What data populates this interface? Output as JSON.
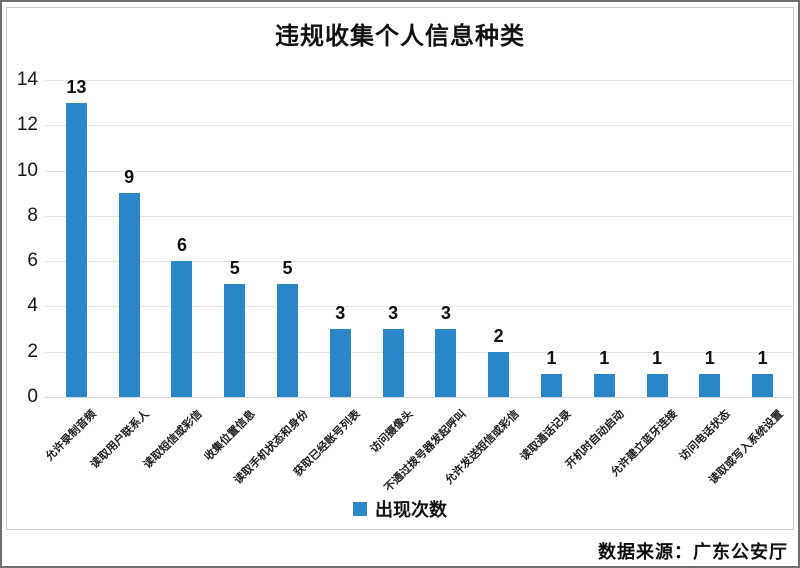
{
  "title": "违规收集个人信息种类",
  "legend": {
    "label": "出现次数",
    "marker_color": "#2a86c7"
  },
  "source": "数据来源：广东公安厅",
  "colors": {
    "bar": "#2a86c7",
    "grid": "#e4e4e4",
    "baseline": "#d6d6d6",
    "frame": "#c9c9c9",
    "text": "#111111"
  },
  "chart_data": {
    "type": "bar",
    "title": "违规收集个人信息种类",
    "categories": [
      "允许录制音频",
      "读取用户联系人",
      "读取短信或彩信",
      "收集位置信息",
      "读取手机状态和身份",
      "获取已经账号列表",
      "访问摄像头",
      "不通过拨号器发起呼叫",
      "允许发送短信或彩信",
      "读取通话记录",
      "开机时自动启动",
      "允许建立蓝牙连接",
      "访问电话状态",
      "读取或写入系统设置"
    ],
    "series": [
      {
        "name": "出现次数",
        "values": [
          13,
          9,
          6,
          5,
          5,
          3,
          3,
          3,
          2,
          1,
          1,
          1,
          1,
          1
        ]
      }
    ],
    "xlabel": "",
    "ylabel": "",
    "ylim": [
      0,
      14
    ],
    "ytick_step": 2,
    "grid": true,
    "legend_position": "bottom",
    "annotations": "每根柱顶部标注数值",
    "source": "数据来源：广东公安厅"
  }
}
